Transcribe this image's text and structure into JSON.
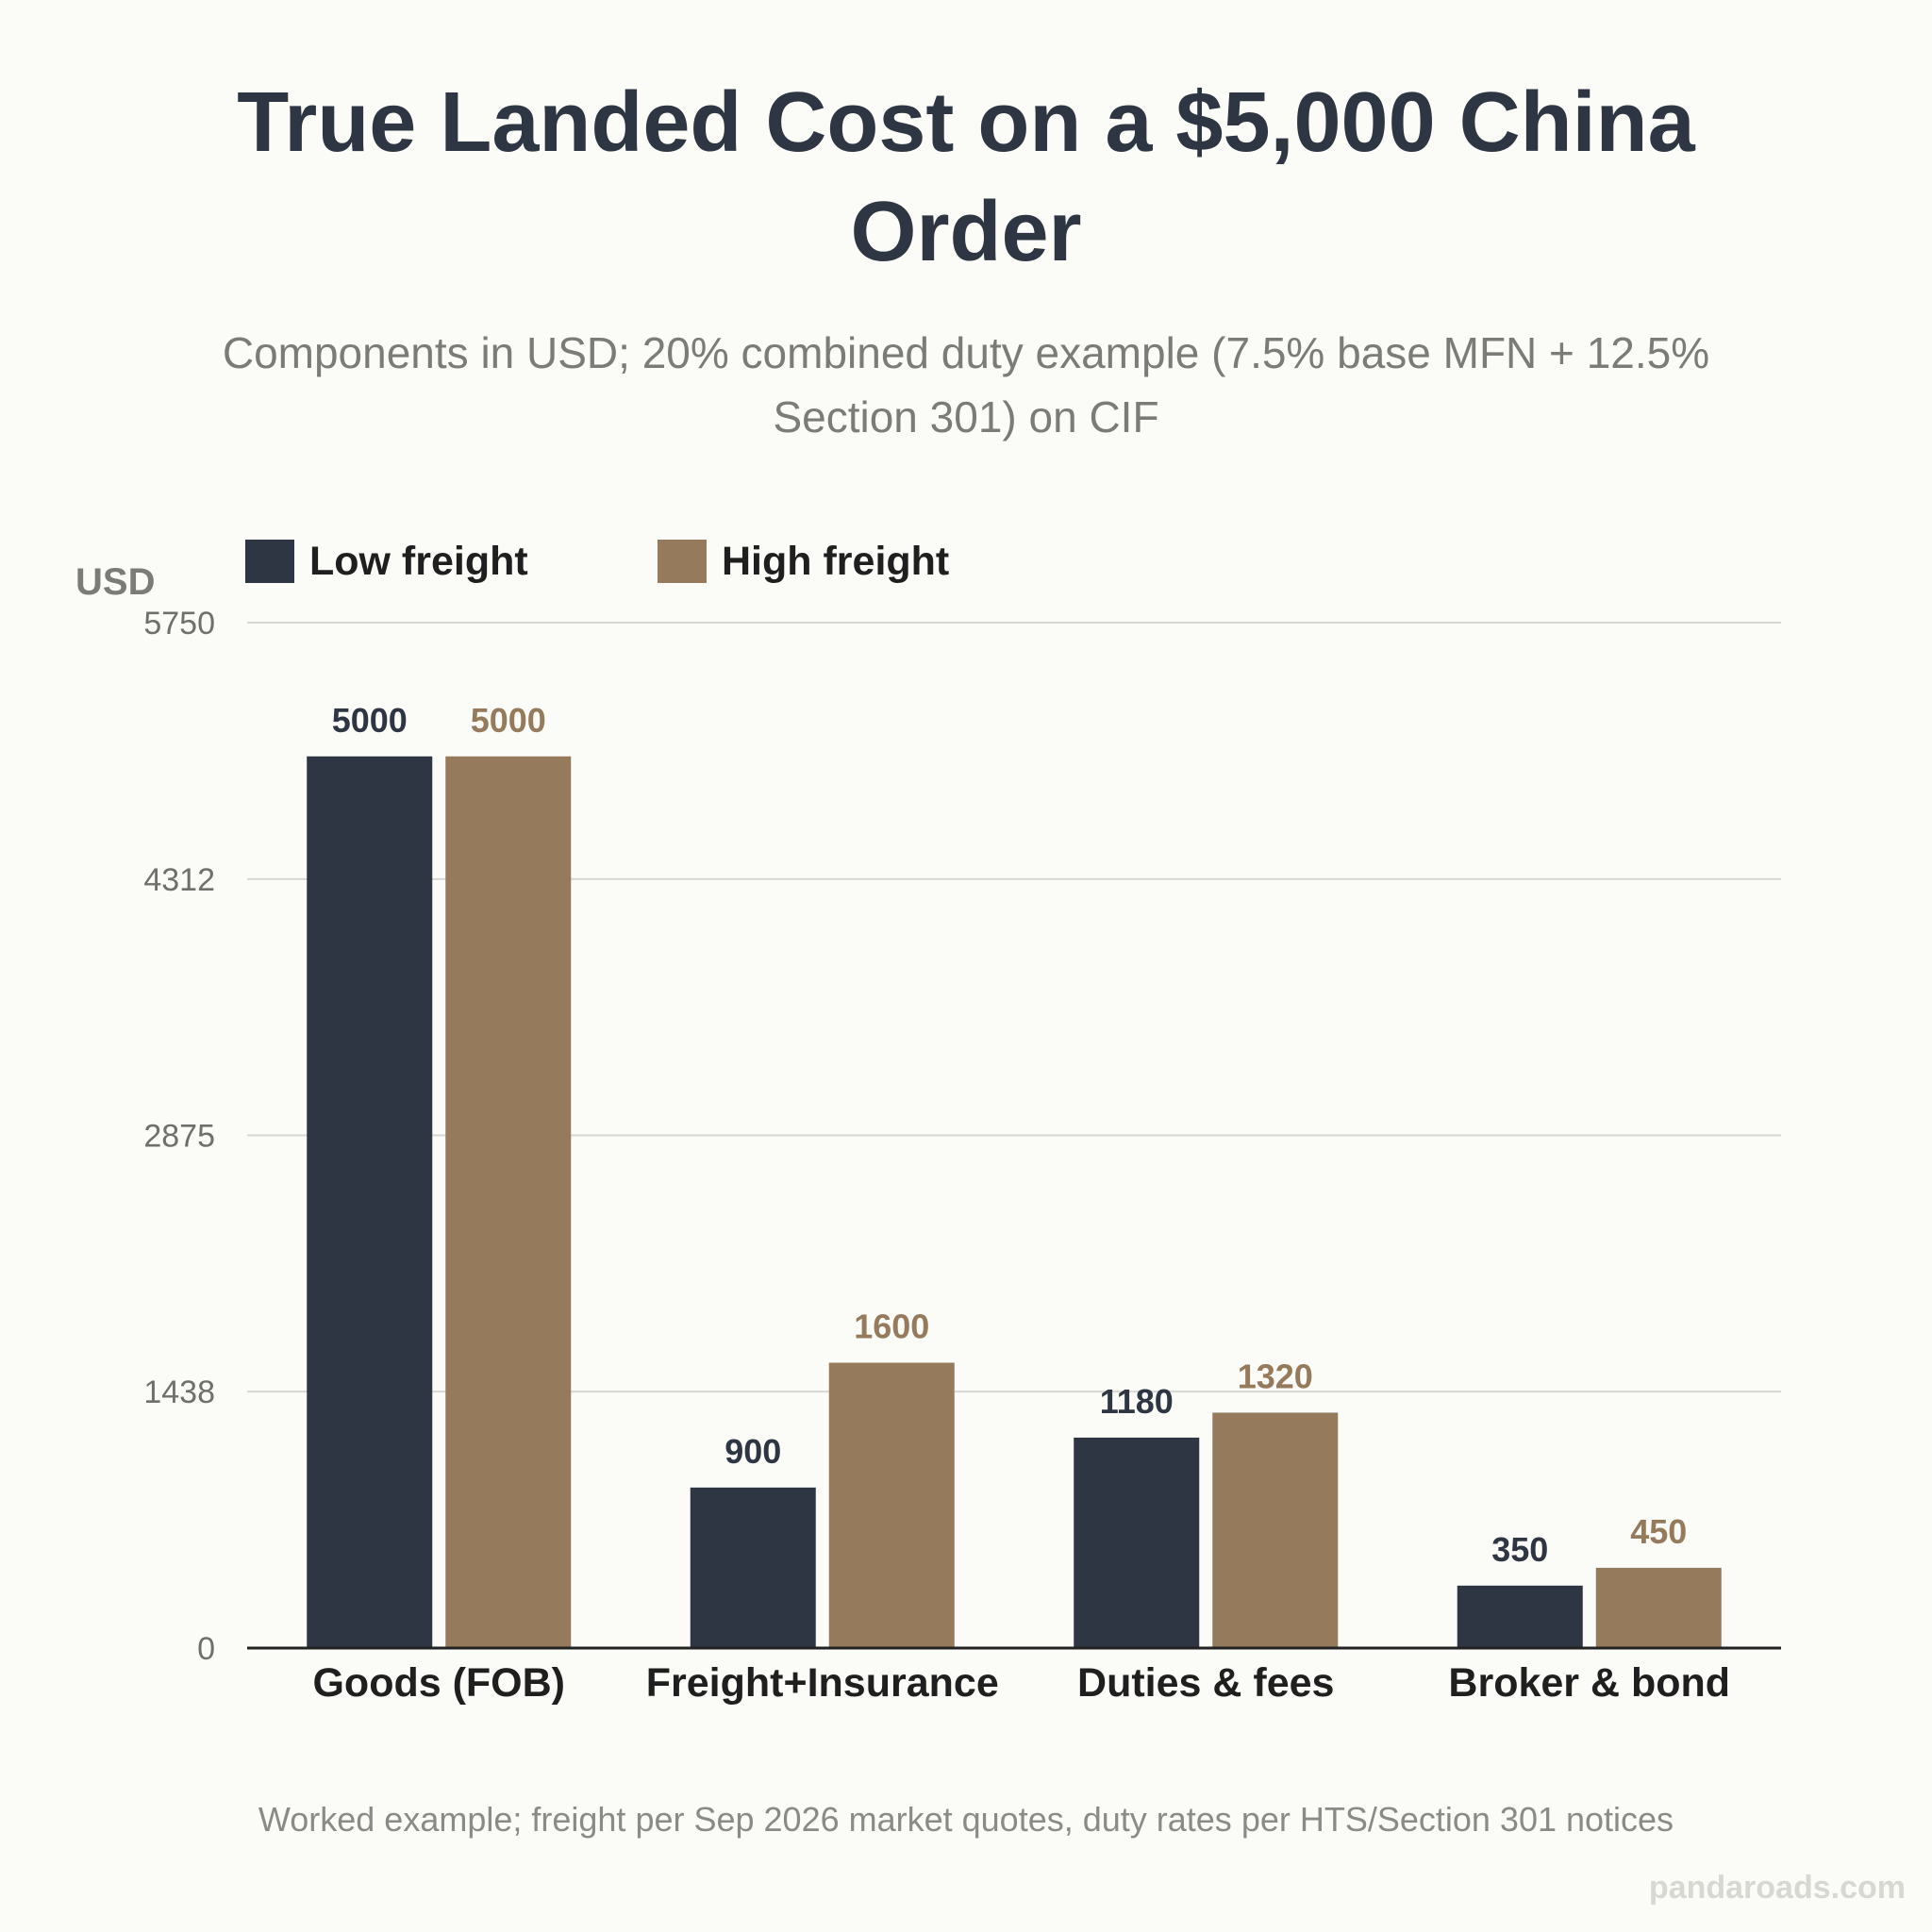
{
  "title": "True Landed Cost on a $5,000 China Order",
  "subtitle": "Components in USD; 20% combined duty example (7.5% base MFN + 12.5% Section 301) on CIF",
  "footnote": "Worked example; freight per Sep 2026 market quotes, duty rates per HTS/Section 301 notices",
  "watermark": "pandaroads.com",
  "colors": {
    "low": "#2d3642",
    "high": "#967a5c",
    "grid": "#d7d7d2",
    "axis": "#222222"
  },
  "chart_data": {
    "type": "bar",
    "categories": [
      "Goods (FOB)",
      "Freight+Insurance",
      "Duties & fees",
      "Broker & bond"
    ],
    "series": [
      {
        "name": "Low freight",
        "color": "#2d3642",
        "values": [
          5000,
          900,
          1180,
          350
        ]
      },
      {
        "name": "High freight",
        "color": "#967a5c",
        "values": [
          5000,
          1600,
          1320,
          450
        ]
      }
    ],
    "ylabel": "USD",
    "ylim": [
      0,
      5750
    ],
    "yticks": [
      0,
      1438,
      2875,
      4312,
      5750
    ],
    "grid": true,
    "legend": "top-left"
  }
}
